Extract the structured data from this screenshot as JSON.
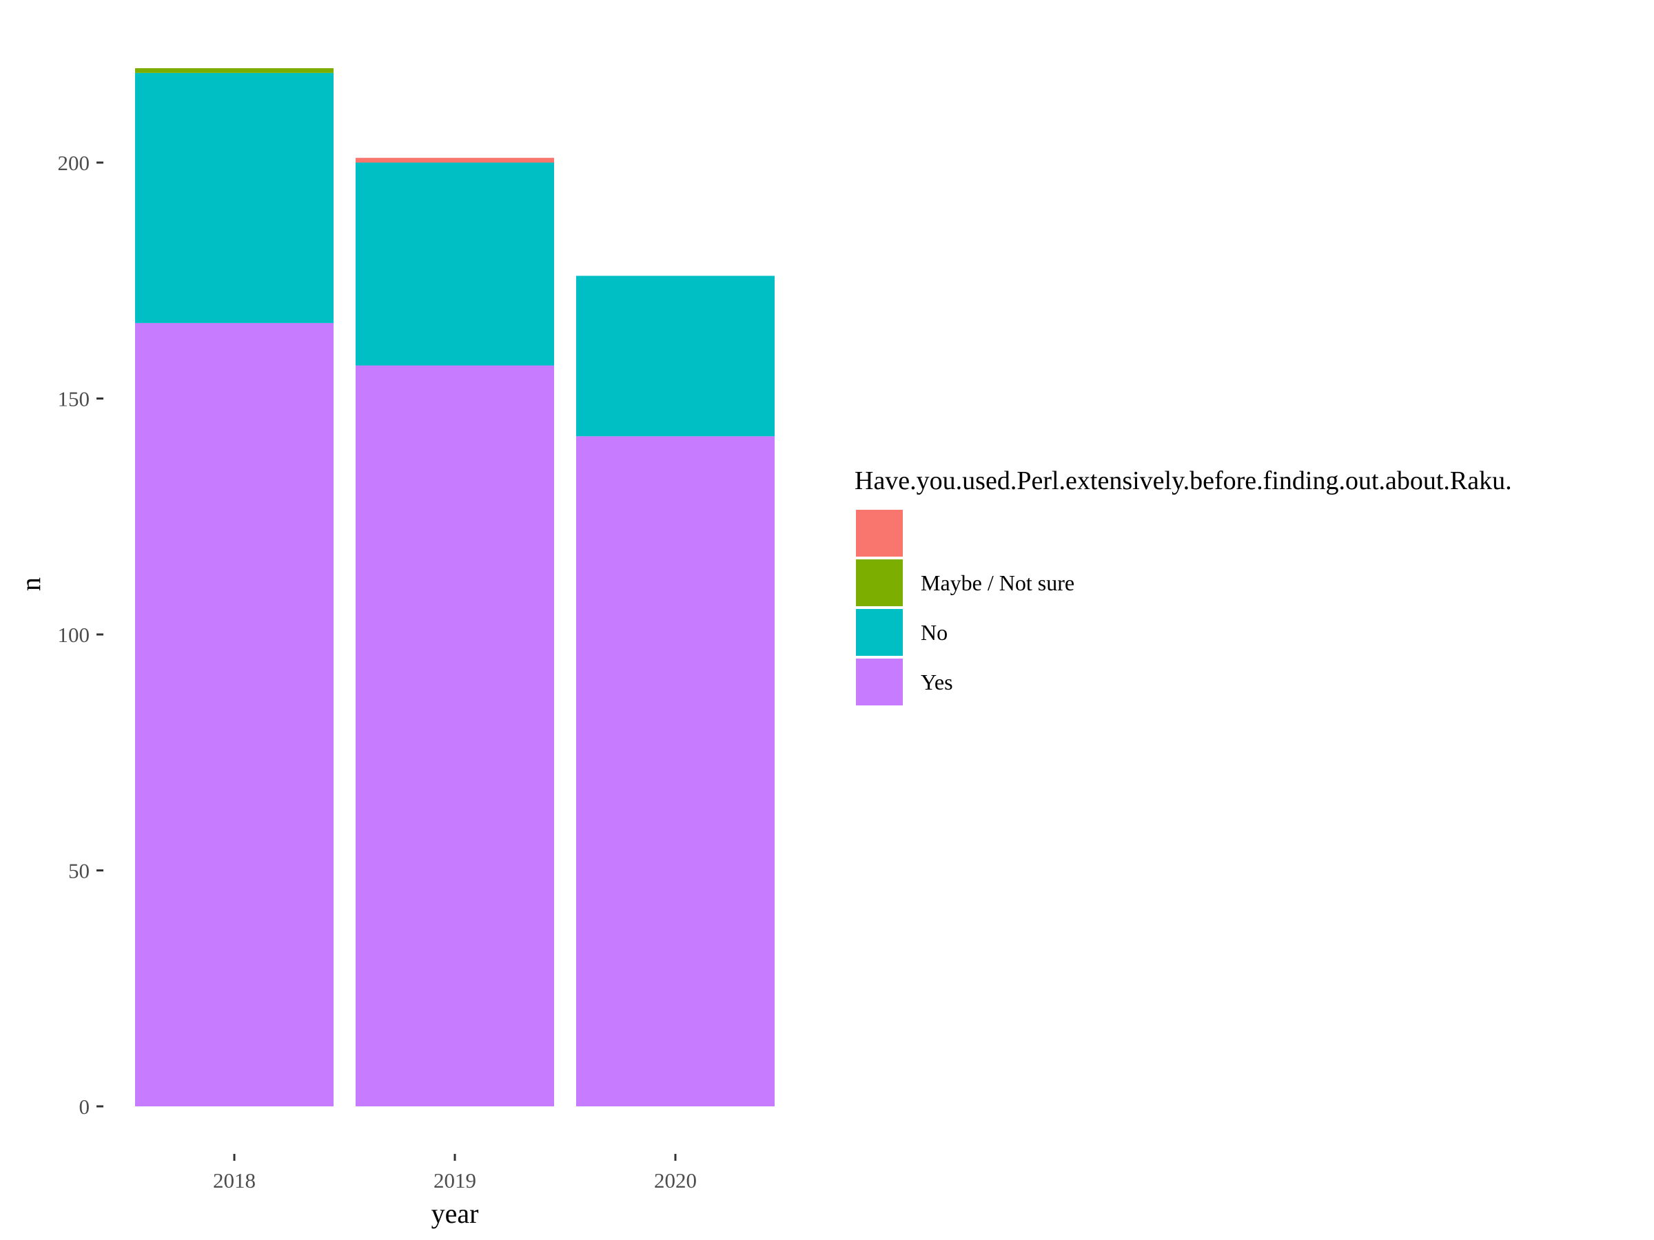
{
  "chart_data": {
    "type": "bar",
    "stacked": true,
    "categories": [
      "2018",
      "2019",
      "2020"
    ],
    "series": [
      {
        "name": "Yes",
        "color": "#C77CFF",
        "values": [
          166,
          157,
          142
        ]
      },
      {
        "name": "No",
        "color": "#00BFC4",
        "values": [
          53,
          43,
          34
        ]
      },
      {
        "name": "Maybe / Not sure",
        "color": "#7CAE00",
        "values": [
          1,
          0,
          0
        ]
      },
      {
        "name": "",
        "color": "#F8766D",
        "values": [
          0,
          1,
          0
        ]
      }
    ],
    "title": "",
    "xlabel": "year",
    "ylabel": "n",
    "ylim": [
      0,
      220
    ],
    "yticks": [
      0,
      50,
      100,
      150,
      200
    ],
    "grid": false,
    "legend": {
      "title": "Have.you.used.Perl.extensively.before.finding.out.about.Raku.",
      "placement": "right",
      "entries": [
        {
          "label": "",
          "color": "#F8766D"
        },
        {
          "label": "Maybe / Not sure",
          "color": "#7CAE00"
        },
        {
          "label": "No",
          "color": "#00BFC4"
        },
        {
          "label": "Yes",
          "color": "#C77CFF"
        }
      ]
    }
  }
}
